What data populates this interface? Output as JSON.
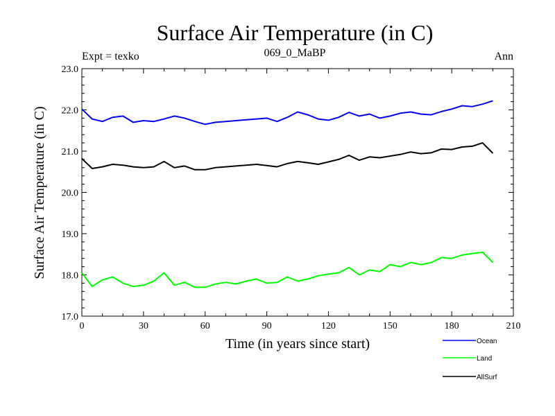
{
  "header": {
    "title": "Surface Air Temperature (in C)",
    "expt": "Expt = texko",
    "subtitle": "069_0_MaBP",
    "period": "Ann"
  },
  "chart_data": {
    "type": "line",
    "title": "Surface Air Temperature (in C)",
    "xlabel": "Time (in years since start)",
    "ylabel": "Surface Air Temperature (in C)",
    "xlim": [
      0,
      210
    ],
    "ylim": [
      17.0,
      23.0
    ],
    "xticks": [
      0,
      30,
      60,
      90,
      120,
      150,
      180,
      210
    ],
    "yticks": [
      17.0,
      18.0,
      19.0,
      20.0,
      21.0,
      22.0,
      23.0
    ],
    "xtick_labels": [
      "0",
      "30",
      "60",
      "90",
      "120",
      "150",
      "180",
      "210"
    ],
    "ytick_labels": [
      "17.0",
      "18.0",
      "19.0",
      "20.0",
      "21.0",
      "22.0",
      "23.0"
    ],
    "x_start": 0,
    "x_step": 5,
    "grid": false,
    "legend_position": "bottom-right",
    "series": [
      {
        "name": "Ocean",
        "color": "#0000ff",
        "values": [
          22.02,
          21.78,
          21.72,
          21.82,
          21.85,
          21.7,
          21.74,
          21.72,
          21.78,
          21.85,
          21.8,
          21.72,
          21.65,
          21.7,
          21.72,
          21.74,
          21.76,
          21.78,
          21.8,
          21.72,
          21.82,
          21.95,
          21.88,
          21.78,
          21.75,
          21.82,
          21.94,
          21.85,
          21.9,
          21.8,
          21.85,
          21.92,
          21.95,
          21.9,
          21.88,
          21.96,
          22.02,
          22.1,
          22.08,
          22.14,
          22.22
        ]
      },
      {
        "name": "Land",
        "color": "#00ff00",
        "values": [
          18.05,
          17.72,
          17.88,
          17.95,
          17.8,
          17.72,
          17.75,
          17.85,
          18.05,
          17.75,
          17.82,
          17.7,
          17.7,
          17.78,
          17.82,
          17.78,
          17.85,
          17.9,
          17.8,
          17.82,
          17.95,
          17.85,
          17.9,
          17.98,
          18.02,
          18.05,
          18.18,
          18.0,
          18.12,
          18.08,
          18.25,
          18.2,
          18.3,
          18.25,
          18.3,
          18.42,
          18.4,
          18.48,
          18.52,
          18.55,
          18.3
        ]
      },
      {
        "name": "AllSurf",
        "color": "#000000",
        "values": [
          20.82,
          20.58,
          20.62,
          20.68,
          20.66,
          20.62,
          20.6,
          20.62,
          20.75,
          20.6,
          20.64,
          20.55,
          20.55,
          20.6,
          20.62,
          20.64,
          20.66,
          20.68,
          20.65,
          20.62,
          20.7,
          20.75,
          20.72,
          20.68,
          20.74,
          20.8,
          20.9,
          20.78,
          20.86,
          20.84,
          20.88,
          20.92,
          20.98,
          20.94,
          20.96,
          21.05,
          21.04,
          21.1,
          21.12,
          21.2,
          20.95
        ]
      }
    ]
  }
}
